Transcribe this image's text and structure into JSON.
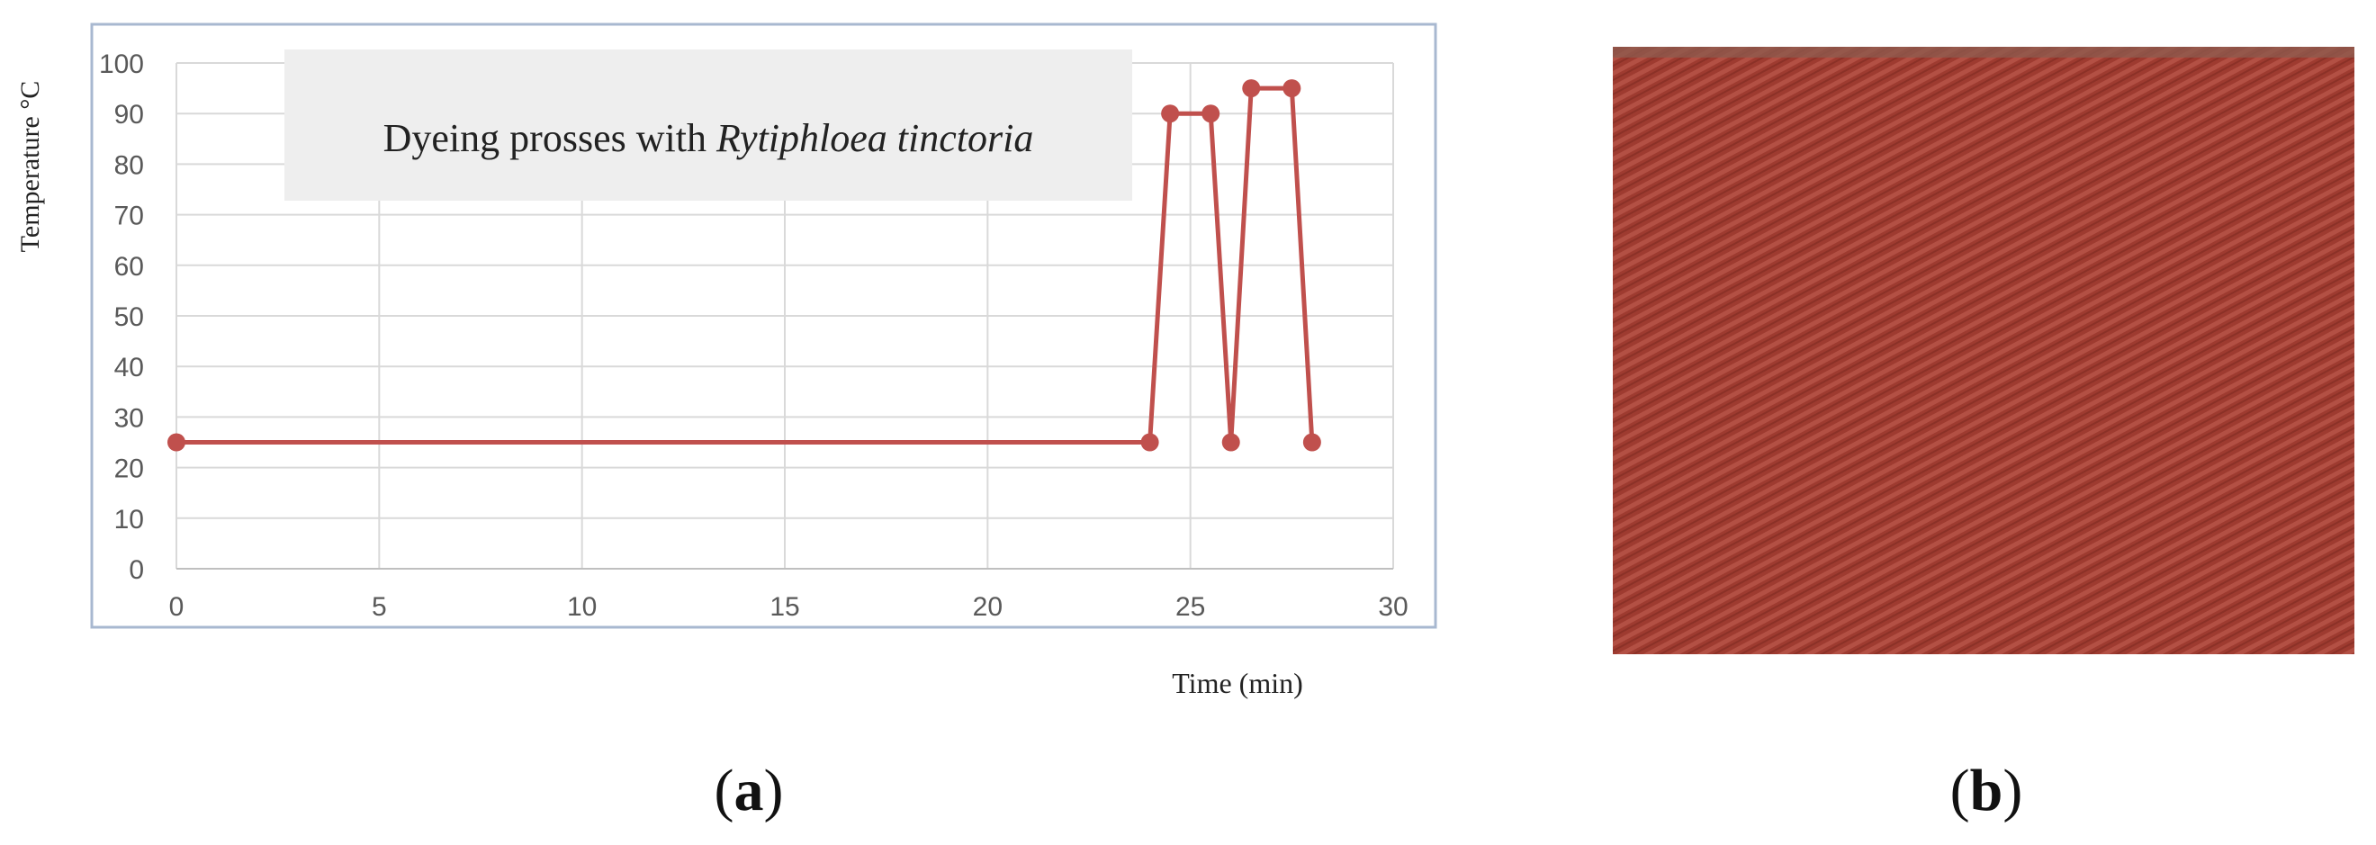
{
  "chart_data": {
    "type": "line",
    "title_prefix": "Dyeing prosses with ",
    "title_italic": "Rytiphloea tinctoria",
    "xlabel": "Time (min)",
    "ylabel": "Temperature °C",
    "xlim": [
      0,
      30
    ],
    "ylim": [
      0,
      100
    ],
    "x_ticks": [
      "0",
      "5",
      "10",
      "15",
      "20",
      "25",
      "30"
    ],
    "y_ticks": [
      "0",
      "10",
      "20",
      "30",
      "40",
      "50",
      "60",
      "70",
      "80",
      "90",
      "100"
    ],
    "grid": true,
    "series": [
      {
        "color": "#c0504d",
        "x": [
          0,
          24,
          24.5,
          25.5,
          26,
          26.5,
          27.5,
          28
        ],
        "y": [
          25,
          25,
          90,
          90,
          25,
          95,
          95,
          25
        ]
      }
    ]
  },
  "panels": {
    "a_label": "a",
    "b_label": "b"
  },
  "fabric_swatch": {
    "base_color": "#9e3b30",
    "thread_color": "#b9574a",
    "shadow_color": "#7e2a22"
  }
}
